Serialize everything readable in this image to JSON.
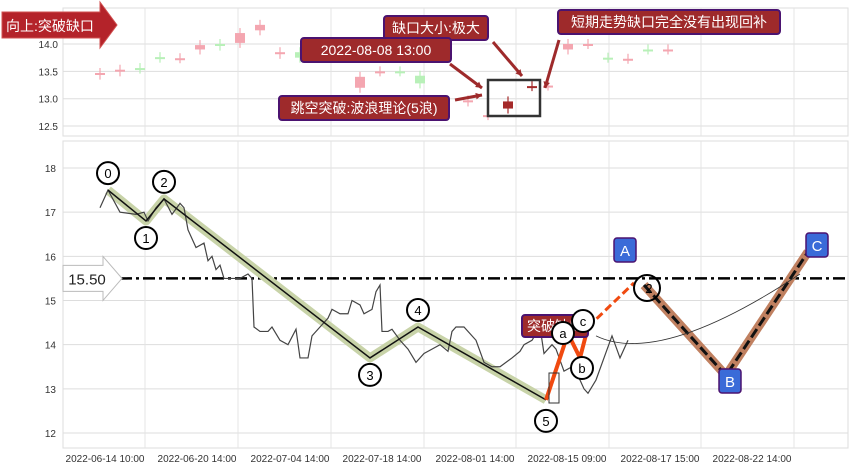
{
  "chart_data": [
    {
      "type": "candlestick",
      "title": "",
      "yticks": [
        "14.0",
        "13.5",
        "13.0",
        "12.5"
      ],
      "ylim": [
        12.4,
        14.3
      ],
      "candles": [
        {
          "bar": 0,
          "open": 13.47,
          "close": 13.44,
          "color": "#f4a6b0"
        },
        {
          "bar": 5,
          "open": 13.5,
          "close": 13.53,
          "color": "#f4a6b0"
        },
        {
          "bar": 10,
          "open": 13.55,
          "close": 13.56,
          "color": "#b8f0b8"
        },
        {
          "bar": 15,
          "open": 13.75,
          "close": 13.76,
          "color": "#b8f0b8"
        },
        {
          "bar": 20,
          "open": 13.74,
          "close": 13.74,
          "color": "#f4a6b0"
        },
        {
          "bar": 25,
          "open": 13.9,
          "close": 13.98,
          "color": "#f4a6b0"
        },
        {
          "bar": 30,
          "open": 14.0,
          "close": 13.97,
          "color": "#b8f0b8"
        },
        {
          "bar": 35,
          "open": 14.02,
          "close": 14.2,
          "color": "#f4a6b0"
        },
        {
          "bar": 40,
          "open": 14.25,
          "close": 14.35,
          "color": "#f4a6b0"
        },
        {
          "bar": 45,
          "open": 13.85,
          "close": 13.82,
          "color": "#f4a6b0"
        },
        {
          "bar": 50,
          "open": 13.85,
          "close": 13.75,
          "color": "#b8f0b8"
        },
        {
          "bar": 65,
          "open": 13.2,
          "close": 13.4,
          "color": "#f4a6b0"
        },
        {
          "bar": 70,
          "open": 13.5,
          "close": 13.5,
          "color": "#f4a6b0"
        },
        {
          "bar": 75,
          "open": 13.5,
          "close": 13.5,
          "color": "#b8f0b8"
        },
        {
          "bar": 80,
          "open": 13.28,
          "close": 13.42,
          "color": "#b8f0b8"
        },
        {
          "bar": 92,
          "open": 12.97,
          "close": 12.95,
          "color": "#f4a6b0"
        },
        {
          "bar": 97,
          "open": 12.7,
          "close": 12.7,
          "color": "#f4a6b0"
        },
        {
          "bar": 102,
          "open": 12.82,
          "close": 12.95,
          "color": "#a52a2a"
        },
        {
          "bar": 108,
          "open": 13.23,
          "close": 13.23,
          "color": "#a52a2a"
        },
        {
          "bar": 112,
          "open": 13.24,
          "close": 13.24,
          "color": "#f4a6b0"
        },
        {
          "bar": 117,
          "open": 13.9,
          "close": 14.0,
          "color": "#f4a6b0"
        },
        {
          "bar": 122,
          "open": 14.0,
          "close": 14.0,
          "color": "#f4a6b0"
        },
        {
          "bar": 127,
          "open": 13.75,
          "close": 13.75,
          "color": "#b8f0b8"
        },
        {
          "bar": 132,
          "open": 13.73,
          "close": 13.73,
          "color": "#f4a6b0"
        },
        {
          "bar": 137,
          "open": 13.9,
          "close": 13.9,
          "color": "#b8f0b8"
        },
        {
          "bar": 142,
          "open": 13.9,
          "close": 13.9,
          "color": "#f4a6b0"
        }
      ],
      "annotations": {
        "breakout_up": "向上:突破缺口",
        "gap_size": "缺口大小:极大",
        "datetime": "2022-08-08 13:00",
        "gap_jump": "跳空突破:波浪理论(5浪)",
        "not_filled": "短期走势缺口完全没有出现回补"
      }
    },
    {
      "type": "line",
      "title": "",
      "yticks": [
        "18",
        "17",
        "16",
        "15",
        "14",
        "13",
        "12"
      ],
      "ylim": [
        11.6,
        18.4
      ],
      "xticks": [
        "2022-06-14 10:00",
        "2022-06-20 14:00",
        "2022-07-04 14:00",
        "2022-07-18 14:00",
        "2022-08-01 14:00",
        "2022-08-15 09:00",
        "2022-08-17 15:00",
        "2022-08-22 14:00"
      ],
      "grid": true,
      "price": [
        [
          0,
          17.1
        ],
        [
          2,
          17.5
        ],
        [
          5,
          17.0
        ],
        [
          9,
          16.95
        ],
        [
          11,
          17.0
        ],
        [
          12,
          16.8
        ],
        [
          14,
          17.1
        ],
        [
          16,
          17.3
        ],
        [
          18,
          16.95
        ],
        [
          20,
          17.2
        ],
        [
          21,
          17.1
        ],
        [
          22,
          16.6
        ],
        [
          24,
          16.2
        ],
        [
          26,
          16.3
        ],
        [
          27,
          15.9
        ],
        [
          28,
          16.0
        ],
        [
          29,
          15.7
        ],
        [
          30,
          15.8
        ],
        [
          31,
          15.5
        ],
        [
          35,
          15.5
        ],
        [
          37,
          15.6
        ],
        [
          38,
          15.5
        ],
        [
          38.5,
          14.4
        ],
        [
          40,
          14.3
        ],
        [
          42,
          14.3
        ],
        [
          43,
          14.4
        ],
        [
          45,
          14.1
        ],
        [
          47,
          14.0
        ],
        [
          49,
          14.35
        ],
        [
          50,
          13.7
        ],
        [
          52,
          13.7
        ],
        [
          53,
          14.2
        ],
        [
          55,
          14.4
        ],
        [
          57,
          14.6
        ],
        [
          58,
          14.8
        ],
        [
          60,
          14.7
        ],
        [
          62,
          14.7
        ],
        [
          63,
          15.0
        ],
        [
          65,
          14.9
        ],
        [
          66,
          14.7
        ],
        [
          68,
          14.8
        ],
        [
          69,
          15.2
        ],
        [
          70,
          15.35
        ],
        [
          70.5,
          14.3
        ],
        [
          72,
          14.3
        ],
        [
          73,
          14.35
        ],
        [
          75,
          14.1
        ],
        [
          77,
          13.9
        ],
        [
          79,
          13.6
        ],
        [
          81,
          13.8
        ],
        [
          83,
          13.9
        ],
        [
          85,
          14.0
        ],
        [
          87,
          13.85
        ],
        [
          88,
          14.3
        ],
        [
          89,
          14.4
        ],
        [
          91,
          14.4
        ],
        [
          94,
          14.1
        ],
        [
          96,
          13.6
        ],
        [
          98,
          13.5
        ],
        [
          100,
          13.5
        ],
        [
          103,
          13.7
        ],
        [
          105,
          13.85
        ],
        [
          106,
          14.0
        ],
        [
          108,
          14.1
        ],
        [
          110,
          14.4
        ],
        [
          111,
          13.8
        ],
        [
          113,
          14.0
        ],
        [
          114,
          13.9
        ],
        [
          116,
          13.4
        ],
        [
          118,
          13.5
        ],
        [
          120,
          13.2
        ],
        [
          121,
          13.0
        ],
        [
          122,
          12.9
        ],
        [
          124,
          13.2
        ],
        [
          128,
          14.2
        ],
        [
          130,
          13.7
        ],
        [
          132,
          14.1
        ]
      ],
      "waves": [
        {
          "label": "0",
          "bar": 2,
          "value": 17.5
        },
        {
          "label": "1",
          "bar": 11.5,
          "value": 16.8
        },
        {
          "label": "2",
          "bar": 16,
          "value": 17.3
        },
        {
          "label": "3",
          "bar": 67.5,
          "value": 13.7
        },
        {
          "label": "4",
          "bar": 79.5,
          "value": 14.4
        },
        {
          "label": "5",
          "bar": 111.5,
          "value": 12.75
        }
      ],
      "abc": [
        {
          "label": "a",
          "bar": 117,
          "value": 14.25
        },
        {
          "label": "b",
          "bar": 120,
          "value": 13.7
        },
        {
          "label": "c",
          "bar": 122,
          "value": 14.4
        }
      ],
      "projection": [
        {
          "label": "A",
          "bar": 133.5,
          "value": 15.4
        },
        {
          "label": "B",
          "bar": 156.5,
          "value": 13.3
        },
        {
          "label": "C",
          "bar": 177,
          "value": 16.1
        }
      ],
      "circle2": {
        "label": "2",
        "bar": 136,
        "value": 15.3
      },
      "resistance": {
        "label": "15.50",
        "value": 15.5
      },
      "gap_label": "突破缺口"
    }
  ],
  "colors": {
    "callout_bg": "#9e2a2b",
    "callout_border": "#4b1370",
    "wave_band": "#c8d3a8",
    "proj_band": "#c08060",
    "orange": "#f04a10",
    "label_box": "#3a6bd8"
  }
}
